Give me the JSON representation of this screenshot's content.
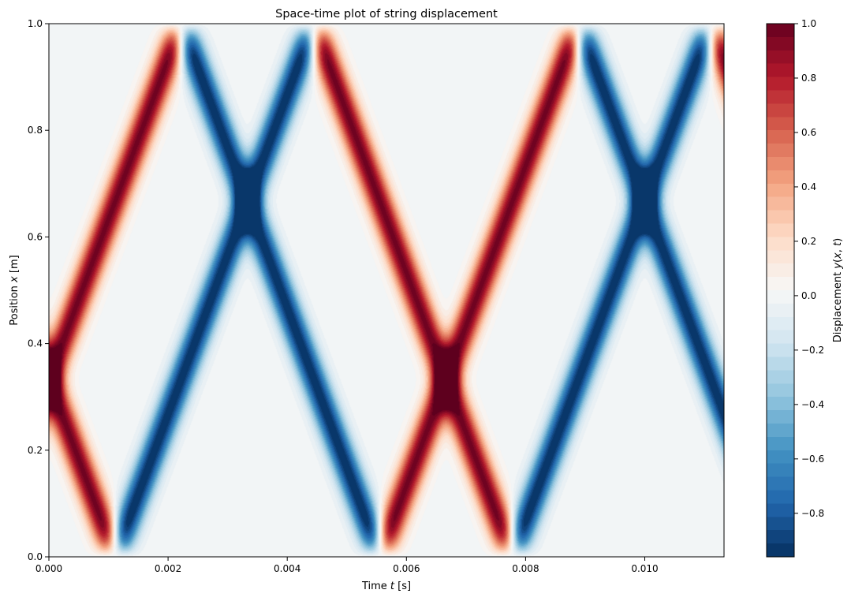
{
  "chart_data": {
    "type": "heatmap",
    "title": "Space-time plot of string displacement",
    "xlabel": "Time t [s]",
    "xlabel_parts": [
      "Time ",
      "t",
      " [s]"
    ],
    "ylabel": "Position x [m]",
    "ylabel_parts": [
      "Position ",
      "x",
      " [m]"
    ],
    "colorbar_label": "Displacement y(x, t)",
    "colorbar_label_parts": [
      "Displacement ",
      "y",
      "(",
      "x",
      ", ",
      "t",
      ")"
    ],
    "colormap": "RdBu_r",
    "colormap_stops": [
      "#053061",
      "#2166ac",
      "#4393c3",
      "#92c5de",
      "#d1e5f0",
      "#f7f7f7",
      "#fddbc7",
      "#f4a582",
      "#d6604d",
      "#b2182b",
      "#67001f"
    ],
    "xlim": [
      0,
      0.01133
    ],
    "ylim": [
      0,
      1
    ],
    "clim": [
      -0.96,
      1.0
    ],
    "x_ticks": [
      0,
      0.002,
      0.004,
      0.006,
      0.008,
      0.01
    ],
    "x_tick_labels": [
      "0.000",
      "0.002",
      "0.004",
      "0.006",
      "0.008",
      "0.010"
    ],
    "y_ticks": [
      0,
      0.2,
      0.4,
      0.6,
      0.8,
      1.0
    ],
    "y_tick_labels": [
      "0.0",
      "0.2",
      "0.4",
      "0.6",
      "0.8",
      "1.0"
    ],
    "colorbar_ticks": [
      -0.8,
      -0.6,
      -0.4,
      -0.2,
      0,
      0.2,
      0.4,
      0.6,
      0.8,
      1.0
    ],
    "colorbar_tick_labels": [
      "−0.8",
      "−0.6",
      "−0.4",
      "−0.2",
      "0.0",
      "0.2",
      "0.4",
      "0.6",
      "0.8",
      "1.0"
    ],
    "field": {
      "model": "two counter-propagating pulses reflecting with inversion at fixed ends",
      "pulse_center_x": 0.333,
      "pulse_width_x": 0.05,
      "period_s": 0.00667,
      "wave_speed_m_per_s": 300
    },
    "grid": false
  }
}
